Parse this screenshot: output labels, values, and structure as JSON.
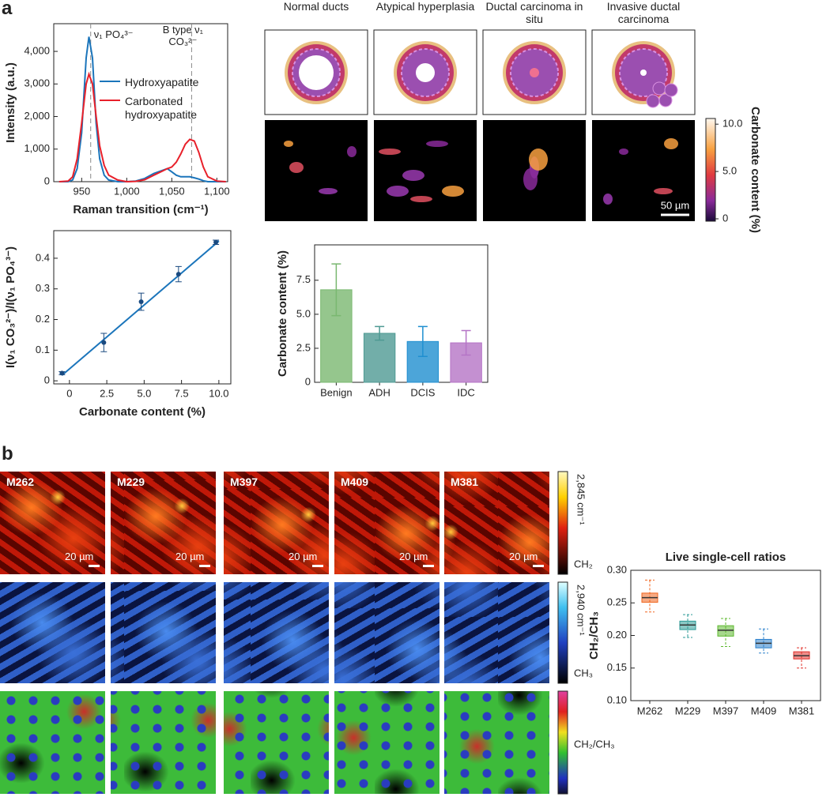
{
  "panel_labels": {
    "a": "a",
    "b": "b"
  },
  "panel_a": {
    "stages": [
      "Normal ducts",
      "Atypical hyperplasia",
      "Ductal carcinoma in situ",
      "Invasive ductal carcinoma"
    ],
    "scale_bar": "50 µm",
    "colorbar": {
      "label": "Carbonate content (%)",
      "lim": [
        -0.25,
        10.6
      ],
      "ticks": [
        {
          "value": 10,
          "label": "10.0"
        },
        {
          "value": 5,
          "label": "5.0"
        },
        0
      ]
    }
  },
  "panel_b": {
    "samples": [
      "M262",
      "M229",
      "M397",
      "M409",
      "M381"
    ],
    "scale_bar": "20 µm",
    "channels": [
      {
        "wavenumber": "2,845 cm⁻¹",
        "label": "CH₂"
      },
      {
        "wavenumber": "2,940 cm⁻¹",
        "label": "CH₃"
      },
      {
        "label": "CH₂/CH₃"
      }
    ]
  },
  "chart_data": [
    {
      "type": "line",
      "x_label": "Raman transition (cm⁻¹)",
      "y_label": "Intensity (a.u.)",
      "x": [
        925,
        935,
        940,
        945,
        950,
        955,
        958,
        962,
        966,
        970,
        975,
        980,
        990,
        1000,
        1010,
        1020,
        1030,
        1040,
        1045,
        1050,
        1055,
        1060,
        1065,
        1070,
        1075,
        1080,
        1085,
        1090,
        1100,
        1110
      ],
      "series": [
        {
          "name": "Hydroxyapatite",
          "color": "#1b75bb",
          "values": [
            0,
            0,
            50,
            400,
            1500,
            3800,
            4450,
            3800,
            1800,
            700,
            200,
            50,
            0,
            0,
            20,
            100,
            250,
            350,
            400,
            300,
            200,
            150,
            150,
            150,
            120,
            80,
            30,
            0,
            0,
            0
          ]
        },
        {
          "name": "Carbonated hydroxyapatite",
          "color": "#e8202a",
          "values": [
            0,
            20,
            150,
            700,
            1800,
            3000,
            3300,
            3000,
            2000,
            1100,
            500,
            200,
            50,
            0,
            10,
            60,
            200,
            330,
            400,
            450,
            600,
            850,
            1150,
            1300,
            1250,
            900,
            450,
            150,
            20,
            0
          ]
        }
      ],
      "vlines": [
        {
          "value": 960,
          "label": "ν₁ PO₄³⁻"
        },
        {
          "value": 1072,
          "label": "B type ν₁ CO₃²⁻"
        }
      ],
      "legend": "right",
      "xlim": [
        919,
        1112
      ],
      "xticks": [
        950,
        {
          "value": 1000,
          "label": "1,000"
        },
        {
          "value": 1050,
          "label": "1,050"
        },
        {
          "value": 1100,
          "label": "1,100"
        }
      ],
      "ylim": [
        0,
        4850
      ],
      "yticks": [
        0,
        {
          "value": 1000,
          "label": "1,000"
        },
        {
          "value": 2000,
          "label": "2,000"
        },
        {
          "value": 3000,
          "label": "3,000"
        },
        {
          "value": 4000,
          "label": "4,000"
        }
      ]
    },
    {
      "type": "scatter",
      "x_label": "Carbonate content (%)",
      "y_label": "I(ν₁ CO₃²⁻)/I(ν₁ PO₄³⁻)",
      "color": "#1b75bb",
      "x": [
        -0.5,
        2.3,
        4.8,
        7.3,
        9.8
      ],
      "values": [
        0.025,
        0.125,
        0.258,
        0.348,
        0.452
      ],
      "errors": [
        0.005,
        0.03,
        0.028,
        0.025,
        0.007
      ],
      "fit": {
        "x": [
          -0.5,
          10
        ],
        "y": [
          0.018,
          0.456
        ]
      },
      "xlim": [
        -1.05,
        10.8
      ],
      "xticks": [
        0,
        2.5,
        {
          "value": 5,
          "label": "5.0"
        },
        7.5,
        {
          "value": 10,
          "label": "10.0"
        }
      ],
      "ylim": [
        -0.01,
        0.49
      ],
      "yticks": [
        0,
        0.1,
        0.2,
        0.3,
        0.4
      ]
    },
    {
      "type": "bar",
      "y_label": "Carbonate content (%)",
      "categories": [
        "Benign",
        "ADH",
        "DCIS",
        "IDC"
      ],
      "values": [
        6.8,
        3.6,
        3.0,
        2.9
      ],
      "errors": [
        1.9,
        0.5,
        1.1,
        0.9
      ],
      "colors": [
        "#7ab870",
        "#4f9a93",
        "#1f8fd0",
        "#b574c6"
      ],
      "ylim": [
        0,
        10.1
      ],
      "yticks": [
        0,
        2.5,
        {
          "value": 5,
          "label": "5.0"
        },
        7.5
      ]
    },
    {
      "type": "box",
      "title": "Live single-cell ratios",
      "y_label": "CH₂/CH₃",
      "categories": [
        "M262",
        "M229",
        "M397",
        "M409",
        "M381"
      ],
      "colors": [
        "#f0641e",
        "#2a9a96",
        "#5cb82e",
        "#2a80cc",
        "#e0302a"
      ],
      "min": [
        0.236,
        0.197,
        0.183,
        0.173,
        0.15
      ],
      "q1": [
        0.251,
        0.209,
        0.199,
        0.181,
        0.164
      ],
      "median": [
        0.258,
        0.216,
        0.208,
        0.188,
        0.169
      ],
      "q3": [
        0.265,
        0.222,
        0.215,
        0.194,
        0.175
      ],
      "max": [
        0.285,
        0.232,
        0.226,
        0.21,
        0.181
      ],
      "ylim": [
        0.1,
        0.3
      ],
      "yticks": [
        {
          "value": 0.1,
          "label": "0.10"
        },
        {
          "value": 0.15,
          "label": "0.15"
        },
        {
          "value": 0.2,
          "label": "0.20"
        },
        {
          "value": 0.25,
          "label": "0.25"
        },
        {
          "value": 0.3,
          "label": "0.30"
        }
      ]
    }
  ]
}
